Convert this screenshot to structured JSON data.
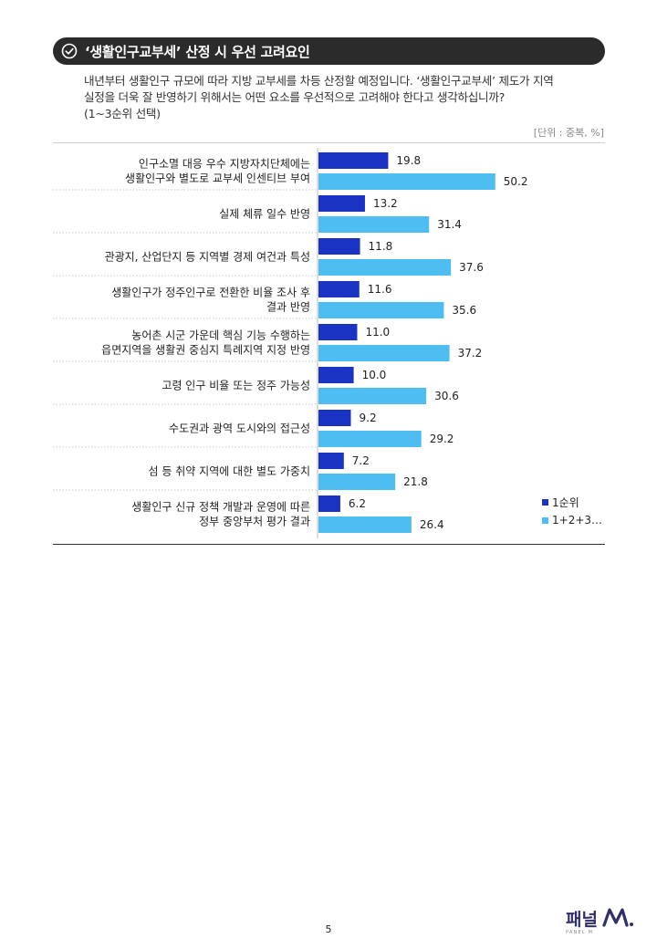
{
  "header": {
    "title": "‘생활인구교부세’ 산정 시 우선 고려요인"
  },
  "question": {
    "line1": "내년부터 생활인구 규모에 따라 지방 교부세를 차등 산정할 예정입니다. ‘생활인구교부세’ 제도가 지역",
    "line2": "실정을 더욱 잘 반영하기 위해서는 어떤 요소를 우선적으로 고려해야 한다고 생각하십니까?",
    "line3": "(1~3순위 선택)"
  },
  "unit": "[단위 : 중복, %]",
  "colors": {
    "first": "#1a33c2",
    "total": "#4ebdf1"
  },
  "legend": {
    "first": "1순위",
    "total": "1+2+3…"
  },
  "page_number": "5",
  "logo": {
    "text": "패널",
    "sub": "PANEL M"
  },
  "chart_data": {
    "type": "bar",
    "orientation": "horizontal",
    "categories": [
      [
        "인구소멸 대응 우수 지방자치단체에는",
        "생활인구와 별도로 교부세 인센티브 부여"
      ],
      [
        "실제 체류 일수 반영"
      ],
      [
        "관광지, 산업단지 등 지역별 경제 여건과 특성"
      ],
      [
        "생활인구가 정주인구로 전환한 비율 조사 후",
        "결과 반영"
      ],
      [
        "농어촌 시군 가운데 핵심 기능 수행하는",
        "읍면지역을 생활권 중심지 특례지역 지정 반영"
      ],
      [
        "고령 인구 비율 또는 정주 가능성"
      ],
      [
        "수도권과 광역 도시와의 접근성"
      ],
      [
        "섬 등 취약 지역에 대한 별도 가중치"
      ],
      [
        "생활인구 신규 정책 개발과 운영에 따른",
        "정부 중앙부처 평가 결과"
      ]
    ],
    "series": [
      {
        "name": "1순위",
        "values": [
          19.8,
          13.2,
          11.8,
          11.6,
          11.0,
          10.0,
          9.2,
          7.2,
          6.2
        ]
      },
      {
        "name": "1+2+3…",
        "values": [
          50.2,
          31.4,
          37.6,
          35.6,
          37.2,
          30.6,
          29.2,
          21.8,
          26.4
        ]
      }
    ],
    "xlim": [
      0,
      60
    ],
    "grid": false,
    "legend_position": "bottom-right"
  }
}
